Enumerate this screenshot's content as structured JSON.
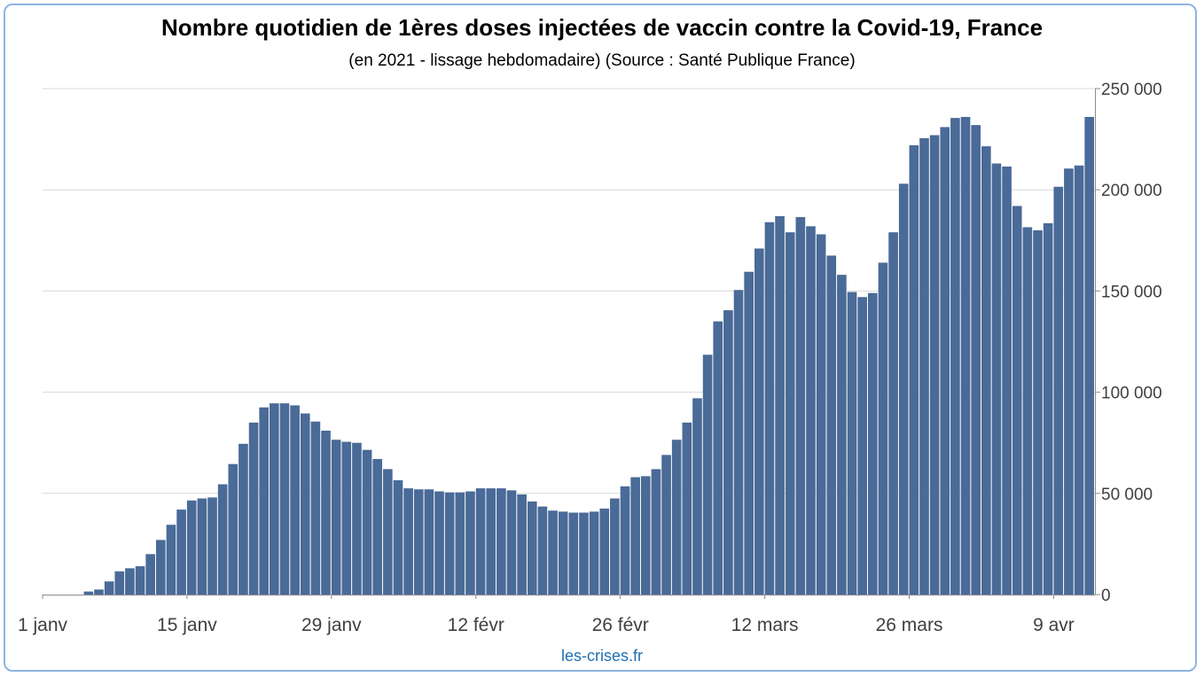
{
  "chart_data": {
    "type": "bar",
    "title": "Nombre quotidien de 1ères doses injectées de vaccin contre la Covid-19, France",
    "subtitle": "(en 2021 - lissage hebdomadaire) (Source : Santé Publique France)",
    "xlabel": "",
    "ylabel": "",
    "ylim": [
      0,
      250000
    ],
    "yticks": [
      0,
      50000,
      100000,
      150000,
      200000,
      250000
    ],
    "ytick_labels": [
      "0",
      "50 000",
      "100 000",
      "150 000",
      "200 000",
      "250 000"
    ],
    "y_axis_side": "right",
    "grid": true,
    "bar_color": "#4a6a98",
    "x_tick_labels": [
      {
        "label": "1 janv",
        "index": 0
      },
      {
        "label": "15 janv",
        "index": 14
      },
      {
        "label": "29 janv",
        "index": 28
      },
      {
        "label": "12 févr",
        "index": 42
      },
      {
        "label": "26 févr",
        "index": 56
      },
      {
        "label": "12 mars",
        "index": 70
      },
      {
        "label": "26 mars",
        "index": 84
      },
      {
        "label": "9 avr",
        "index": 98
      }
    ],
    "values": [
      0,
      0,
      0,
      0,
      1500,
      2500,
      6500,
      11500,
      13000,
      14000,
      20000,
      27000,
      34500,
      42000,
      46500,
      47500,
      48000,
      54500,
      64500,
      74500,
      85000,
      92500,
      94500,
      94500,
      93500,
      89500,
      85500,
      81000,
      76500,
      75500,
      75000,
      71500,
      67000,
      62000,
      56500,
      52500,
      52000,
      52000,
      51000,
      50500,
      50500,
      51000,
      52500,
      52500,
      52500,
      51500,
      49500,
      46000,
      43500,
      41500,
      41000,
      40500,
      40500,
      41000,
      42500,
      47500,
      53500,
      58000,
      58500,
      62000,
      69000,
      76500,
      85000,
      97000,
      118500,
      135000,
      140500,
      150500,
      159500,
      171000,
      184000,
      187000,
      179000,
      186500,
      182000,
      178000,
      167500,
      158000,
      149500,
      147000,
      149000,
      164000,
      179000,
      203000,
      222000,
      225500,
      227000,
      231000,
      235500,
      236000,
      232000,
      221500,
      213000,
      211500,
      192000,
      181500,
      180000,
      183500,
      201500,
      210500,
      212000,
      236000
    ]
  },
  "footer": {
    "source": "les-crises.fr"
  }
}
